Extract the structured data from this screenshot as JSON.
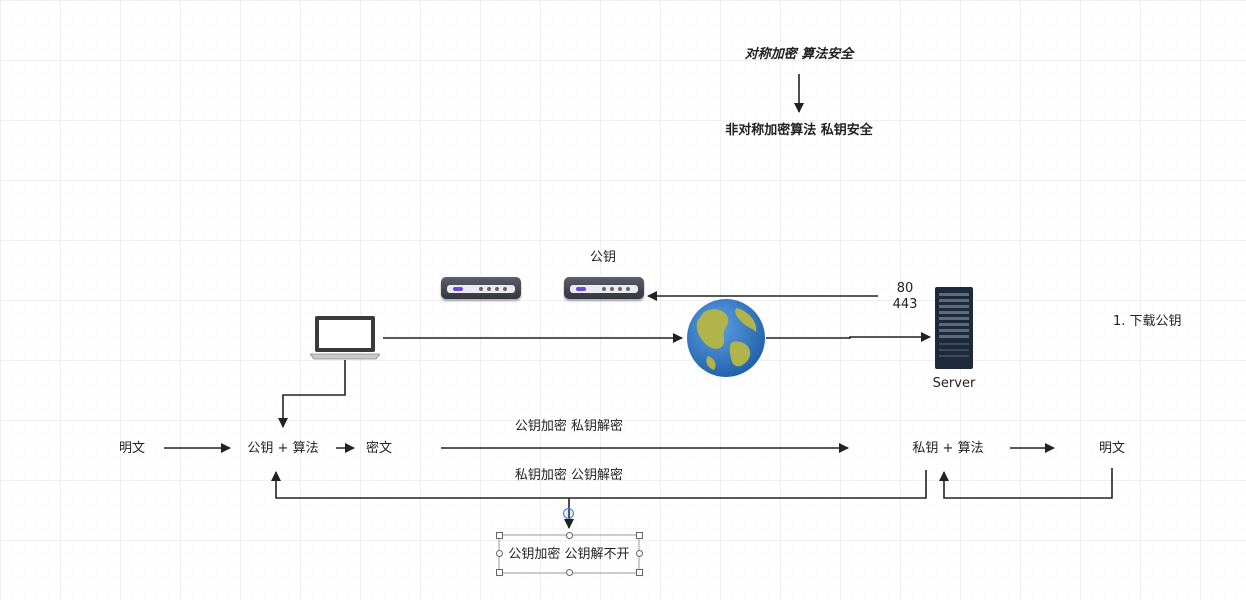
{
  "notes": {
    "top_line1": "对称加密 算法安全",
    "top_line2": "非对称加密算法 私钥安全"
  },
  "devices": {
    "public_key_label": "公钥",
    "port_80": "80",
    "port_443": "443",
    "server_label": "Server",
    "step_note": "1. 下载公钥"
  },
  "flow": {
    "plaintext_left": "明文",
    "client_key": "公钥 + 算法",
    "ciphertext": "密文",
    "forward_label": "公钥加密  私钥解密",
    "server_key": "私钥 + 算法",
    "plaintext_right": "明文",
    "back_label": "私钥加密 公钥解密"
  },
  "selected_box": {
    "text": "公钥加密 公钥解不开"
  },
  "colors": {
    "line": "#222222",
    "selection": "#4a7bd6"
  }
}
